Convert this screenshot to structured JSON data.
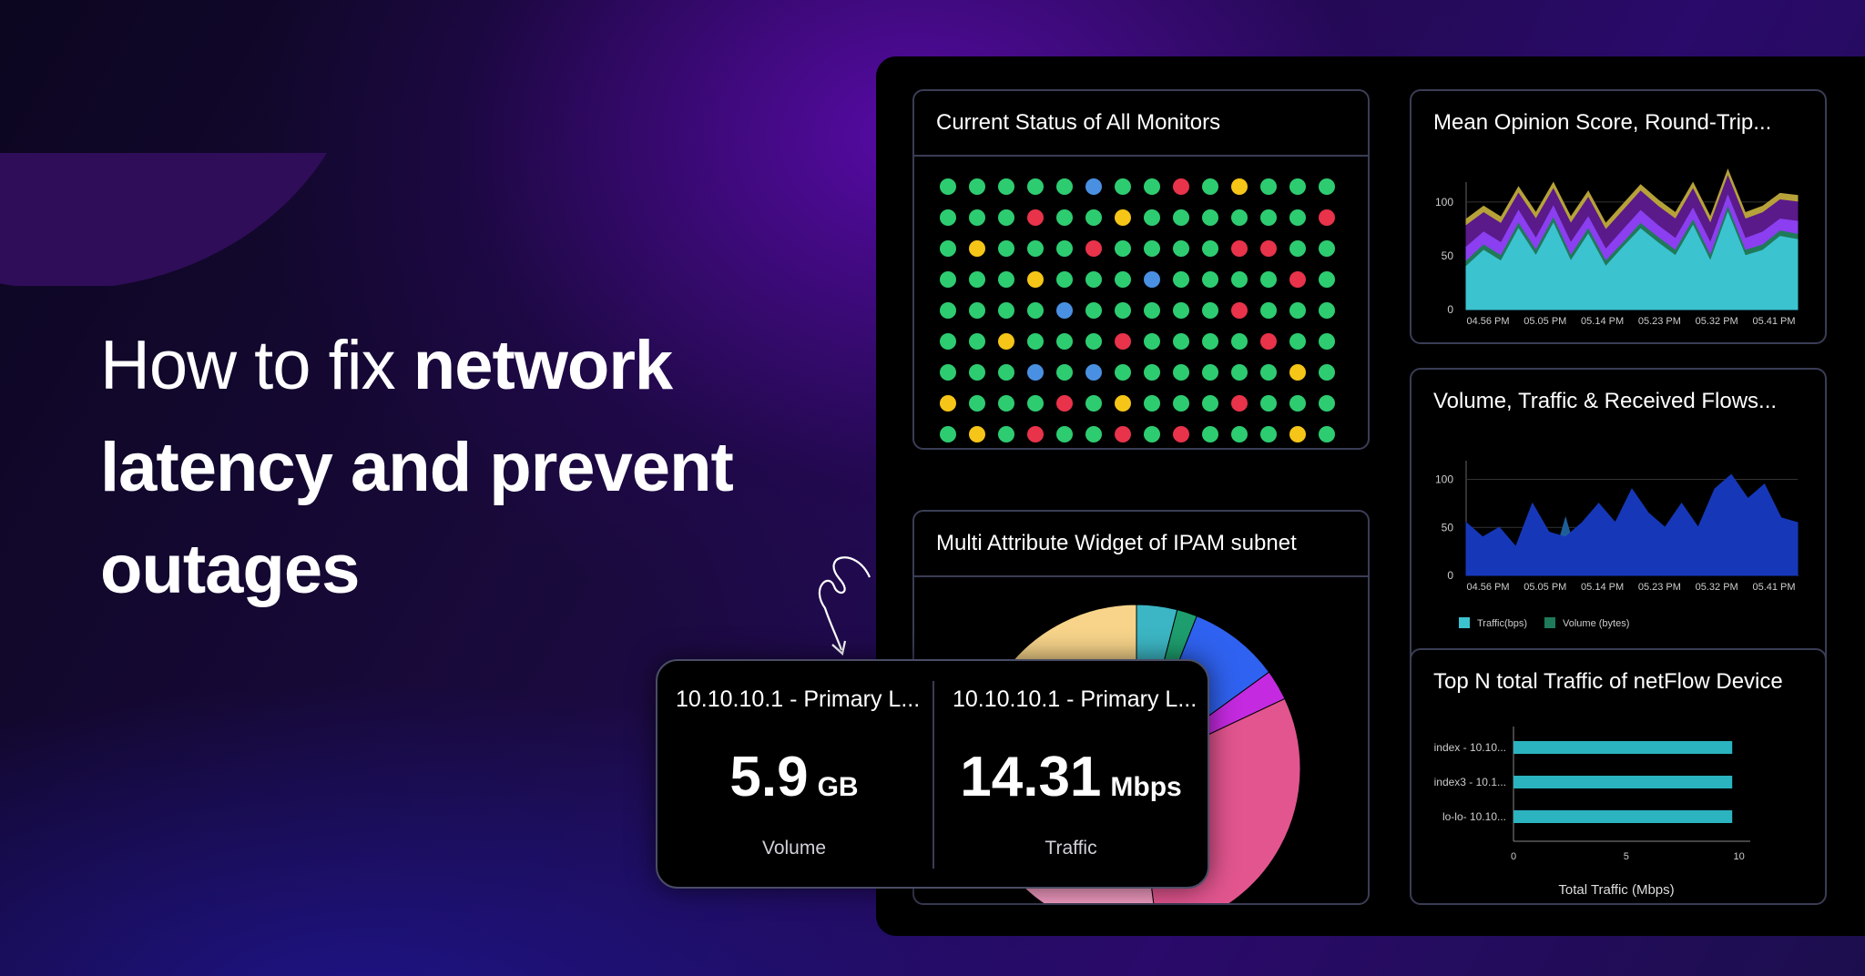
{
  "headline": {
    "light": "How to fix",
    "bold1": "network",
    "bold2": "latency and prevent",
    "bold3": "outages"
  },
  "colors": {
    "green": "#2ecc71",
    "red": "#e8334a",
    "yellow": "#f5c518",
    "blue": "#4a90e2",
    "card_border": "#3a3d55",
    "teal": "#2bb3c0"
  },
  "status_card": {
    "title": "Current Status of All Monitors",
    "grid": [
      [
        "g",
        "g",
        "g",
        "g",
        "g",
        "b",
        "g",
        "g",
        "r",
        "g",
        "y",
        "g",
        "g",
        "g"
      ],
      [
        "g",
        "g",
        "g",
        "r",
        "g",
        "g",
        "y",
        "g",
        "g",
        "g",
        "g",
        "g",
        "g",
        "r"
      ],
      [
        "g",
        "y",
        "g",
        "g",
        "g",
        "r",
        "g",
        "g",
        "g",
        "g",
        "r",
        "r",
        "g",
        "g"
      ],
      [
        "g",
        "g",
        "g",
        "y",
        "g",
        "g",
        "g",
        "b",
        "g",
        "g",
        "g",
        "g",
        "r",
        "g"
      ],
      [
        "g",
        "g",
        "g",
        "g",
        "b",
        "g",
        "g",
        "g",
        "g",
        "g",
        "r",
        "g",
        "g",
        "g"
      ],
      [
        "g",
        "g",
        "y",
        "g",
        "g",
        "g",
        "r",
        "g",
        "g",
        "g",
        "g",
        "r",
        "g",
        "g"
      ],
      [
        "g",
        "g",
        "g",
        "b",
        "g",
        "b",
        "g",
        "g",
        "g",
        "g",
        "g",
        "g",
        "y",
        "g"
      ],
      [
        "y",
        "g",
        "g",
        "g",
        "r",
        "g",
        "y",
        "g",
        "g",
        "g",
        "r",
        "g",
        "g",
        "g"
      ],
      [
        "g",
        "y",
        "g",
        "r",
        "g",
        "g",
        "r",
        "g",
        "r",
        "g",
        "g",
        "g",
        "y",
        "g"
      ]
    ]
  },
  "mos_card": {
    "title": "Mean Opinion Score, Round-Trip..."
  },
  "vol_card": {
    "title": "Volume, Traffic & Received Flows..."
  },
  "ipam_card": {
    "title": "Multi Attribute Widget of IPAM subnet"
  },
  "topn_card": {
    "title": "Top N total Traffic of netFlow Device"
  },
  "metric": {
    "left": {
      "title": "10.10.10.1 - Primary L...",
      "value": "5.9",
      "unit": "GB",
      "label": "Volume"
    },
    "right": {
      "title": "10.10.10.1 - Primary L...",
      "value": "14.31",
      "unit": "Mbps",
      "label": "Traffic"
    }
  },
  "chart_data": [
    {
      "type": "area",
      "title": "Mean Opinion Score, Round-Trip...",
      "ylim": [
        0,
        110
      ],
      "yticks": [
        "0",
        "50",
        "100"
      ],
      "xticks": [
        "04.56 PM",
        "05.05 PM",
        "05.14 PM",
        "05.23 PM",
        "05.32 PM",
        "05.41 PM"
      ],
      "series": [
        {
          "color": "#3cc3d0",
          "values": [
            40,
            55,
            45,
            75,
            50,
            80,
            45,
            70,
            40,
            58,
            75,
            62,
            50,
            78,
            45,
            90,
            50,
            55,
            68,
            65
          ]
        },
        {
          "color": "#1f7a5a",
          "values": [
            45,
            60,
            50,
            80,
            55,
            85,
            50,
            75,
            45,
            62,
            80,
            67,
            55,
            83,
            50,
            95,
            55,
            60,
            73,
            70
          ]
        },
        {
          "color": "#8b3ff0",
          "values": [
            58,
            72,
            62,
            92,
            66,
            96,
            62,
            86,
            56,
            74,
            92,
            78,
            66,
            94,
            62,
            106,
            66,
            72,
            84,
            82
          ]
        },
        {
          "color": "#5a1a8a",
          "values": [
            78,
            90,
            80,
            108,
            84,
            112,
            80,
            104,
            74,
            92,
            110,
            96,
            84,
            112,
            80,
            124,
            84,
            90,
            102,
            100
          ]
        },
        {
          "color": "#b7a23a",
          "values": [
            84,
            96,
            86,
            114,
            90,
            118,
            86,
            110,
            80,
            98,
            116,
            102,
            90,
            118,
            86,
            130,
            90,
            96,
            108,
            106
          ]
        }
      ]
    },
    {
      "type": "area",
      "title": "Volume, Traffic & Received Flows...",
      "ylim": [
        0,
        110
      ],
      "yticks": [
        "0",
        "50",
        "100"
      ],
      "xticks": [
        "04.56 PM",
        "05.05 PM",
        "05.14 PM",
        "05.23 PM",
        "05.32 PM",
        "05.41 PM"
      ],
      "legend": [
        "Traffic(bps)",
        "Volume (bytes)"
      ],
      "series": [
        {
          "name": "Volume (bytes)",
          "color": "#1638b8",
          "values": [
            55,
            40,
            50,
            30,
            75,
            45,
            40,
            55,
            75,
            55,
            90,
            65,
            50,
            75,
            50,
            90,
            105,
            80,
            95,
            60,
            55
          ]
        },
        {
          "name": "Traffic(bps)",
          "color": "#1e5f9a",
          "values": [
            0,
            0,
            30,
            5,
            0,
            0,
            60,
            0,
            0,
            10,
            0,
            0,
            0,
            0,
            0,
            0,
            80,
            0,
            0,
            10,
            0
          ]
        }
      ]
    },
    {
      "type": "bar",
      "title": "Top N total Traffic of netFlow Device",
      "categories": [
        "index - 10.10...",
        "index3 - 10.1...",
        "lo-lo- 10.10..."
      ],
      "values": [
        9.7,
        9.7,
        9.7
      ],
      "xticks": [
        "0",
        "5",
        "10"
      ],
      "xlim": [
        0,
        10.5
      ],
      "xlabel": "Total Traffic (Mbps)"
    },
    {
      "type": "pie",
      "title": "Multi Attribute Widget of IPAM subnet",
      "slices": [
        {
          "value": 32,
          "color": "#f7d48a"
        },
        {
          "value": 4,
          "color": "#3cb6c4"
        },
        {
          "value": 2,
          "color": "#1e9e6e"
        },
        {
          "value": 9,
          "color": "#2f62f0"
        },
        {
          "value": 3,
          "color": "#c42adf"
        },
        {
          "value": 30,
          "color": "#e2558f"
        },
        {
          "value": 20,
          "color": "#f29bc0"
        }
      ]
    }
  ]
}
